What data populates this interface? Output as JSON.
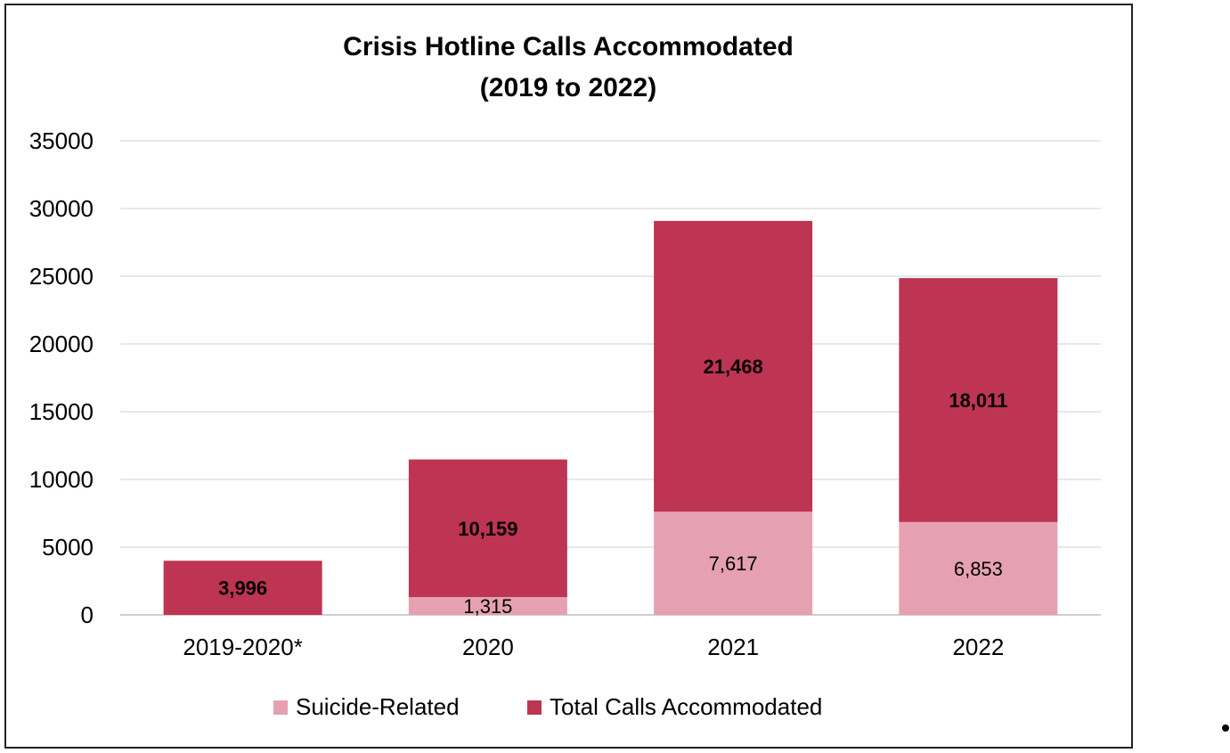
{
  "chart_data": {
    "type": "bar",
    "stacked": true,
    "title_lines": [
      "Crisis Hotline Calls Accommodated",
      "(2019 to 2022)"
    ],
    "categories": [
      "2019-2020*",
      "2020",
      "2021",
      "2022"
    ],
    "series": [
      {
        "name": "Suicide-Related",
        "color": "#e6a1b0",
        "values": [
          0,
          1315,
          7617,
          6853
        ],
        "labels": [
          "",
          "1,315",
          "7,617",
          "6,853"
        ]
      },
      {
        "name": "Total Calls Accommodated",
        "color": "#be3453",
        "values": [
          3996,
          10159,
          21468,
          18011
        ],
        "labels": [
          "3,996",
          "10,159",
          "21,468",
          "18,011"
        ]
      }
    ],
    "ylim": [
      0,
      35000
    ],
    "yticks": [
      0,
      5000,
      10000,
      15000,
      20000,
      25000,
      30000,
      35000
    ],
    "ytick_labels": [
      "0",
      "5000",
      "10000",
      "15000",
      "20000",
      "25000",
      "30000",
      "35000"
    ],
    "grid": true,
    "legend_position": "bottom-center",
    "xlabel": "",
    "ylabel": ""
  }
}
